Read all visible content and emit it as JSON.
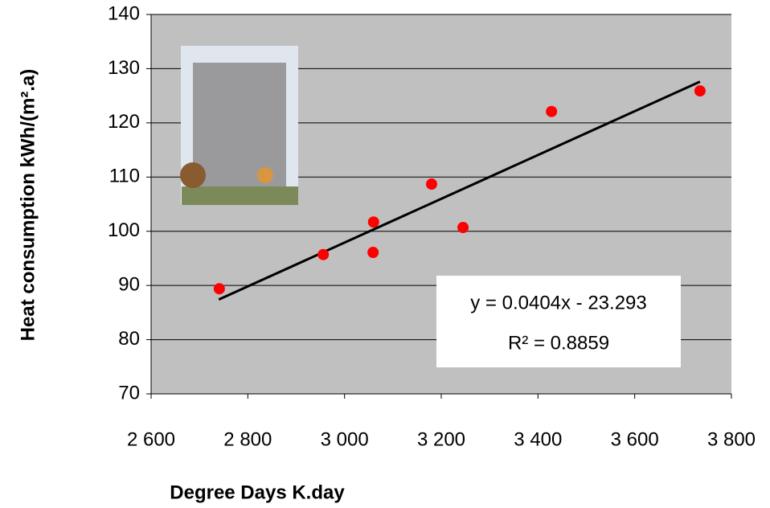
{
  "chart_data": {
    "type": "scatter",
    "x_label": "Degree Days  K.day",
    "y_label": "Heat consumption  kWh/(m².a)",
    "annotation": "y = 0.0404x - 23.293",
    "r2_label": "R² = 0.8859",
    "x": [
      2741,
      2956,
      3059,
      3060,
      3180,
      3245,
      3428,
      3735
    ],
    "values": [
      89.4,
      95.7,
      96.1,
      101.7,
      108.7,
      100.7,
      122.1,
      125.9
    ],
    "color": "#ff0000",
    "trendline": {
      "slope": 0.0404,
      "intercept": -23.293,
      "x": [
        2740,
        3735
      ],
      "color": "#000000"
    },
    "xlim": [
      2600,
      3800
    ],
    "xticks": [
      {
        "value": 2600,
        "label": "2 600"
      },
      {
        "value": 2800,
        "label": "2 800"
      },
      {
        "value": 3000,
        "label": "3 000"
      },
      {
        "value": 3200,
        "label": "3 200"
      },
      {
        "value": 3400,
        "label": "3 400"
      },
      {
        "value": 3600,
        "label": "3 600"
      },
      {
        "value": 3800,
        "label": "3 800"
      }
    ],
    "ylim": [
      70,
      140
    ],
    "yticks": [
      70,
      80,
      90,
      100,
      110,
      120,
      130,
      140
    ],
    "grid": true,
    "background": "#c0c0c0"
  }
}
